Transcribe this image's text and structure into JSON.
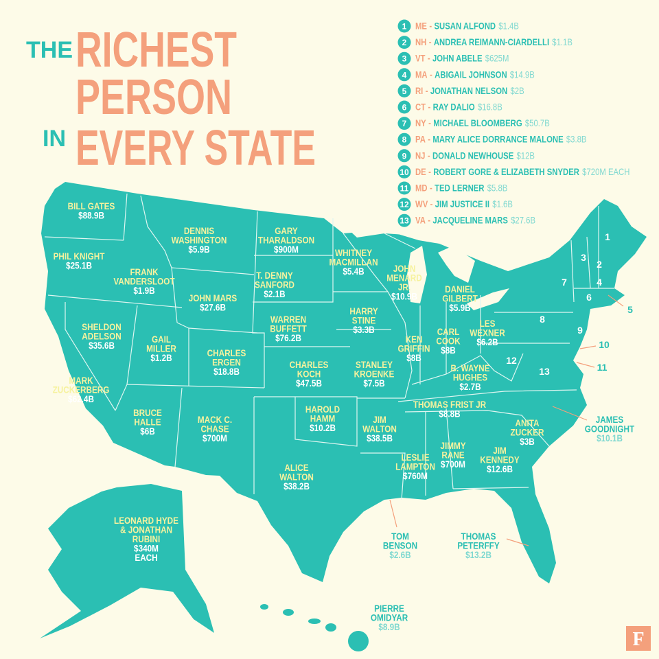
{
  "title": {
    "the": "THE",
    "richest": "RICHEST",
    "person": "PERSON",
    "in": "IN",
    "every_state": "EVERY STATE"
  },
  "legend_separator": "-",
  "legend": [
    {
      "number": "1",
      "state": "ME",
      "name": "SUSAN ALFOND",
      "worth": "$1.4B"
    },
    {
      "number": "2",
      "state": "NH",
      "name": "ANDREA REIMANN-CIARDELLI",
      "worth": "$1.1B"
    },
    {
      "number": "3",
      "state": "VT",
      "name": "JOHN ABELE",
      "worth": "$625M"
    },
    {
      "number": "4",
      "state": "MA",
      "name": "ABIGAIL JOHNSON",
      "worth": "$14.9B"
    },
    {
      "number": "5",
      "state": "RI",
      "name": "JONATHAN NELSON",
      "worth": "$2B"
    },
    {
      "number": "6",
      "state": "CT",
      "name": "RAY DALIO",
      "worth": "$16.8B"
    },
    {
      "number": "7",
      "state": "NY",
      "name": "MICHAEL BLOOMBERG",
      "worth": "$50.7B"
    },
    {
      "number": "8",
      "state": "PA",
      "name": "MARY ALICE DORRANCE MALONE",
      "worth": "$3.8B"
    },
    {
      "number": "9",
      "state": "NJ",
      "name": "DONALD NEWHOUSE",
      "worth": "$12B"
    },
    {
      "number": "10",
      "state": "DE",
      "name": "ROBERT GORE & ELIZABETH SNYDER",
      "worth": "$720M EACH"
    },
    {
      "number": "11",
      "state": "MD",
      "name": "TED LERNER",
      "worth": "$5.8B"
    },
    {
      "number": "12",
      "state": "WV",
      "name": "JIM JUSTICE II",
      "worth": "$1.6B"
    },
    {
      "number": "13",
      "state": "VA",
      "name": "JACQUELINE MARS",
      "worth": "$27.6B"
    }
  ],
  "map_labels": [
    {
      "lines": [
        "BILL GATES"
      ],
      "worth": [
        "$88.9B"
      ]
    },
    {
      "lines": [
        "PHIL KNIGHT"
      ],
      "worth": [
        "$25.1B"
      ]
    },
    {
      "lines": [
        "DENNIS",
        "WASHINGTON"
      ],
      "worth": [
        "$5.9B"
      ]
    },
    {
      "lines": [
        "GARY",
        "THARALDSON"
      ],
      "worth": [
        "$900M"
      ]
    },
    {
      "lines": [
        "FRANK",
        "VANDERSLOOT"
      ],
      "worth": [
        "$1.9B"
      ]
    },
    {
      "lines": [
        "WHITNEY",
        "MACMILLAN"
      ],
      "worth": [
        "$5.4B"
      ]
    },
    {
      "lines": [
        "T. DENNY",
        "SANFORD"
      ],
      "worth": [
        "$2.1B"
      ]
    },
    {
      "lines": [
        "JOHN",
        "MENARD",
        "JR."
      ],
      "worth": [
        "$10.9B"
      ]
    },
    {
      "lines": [
        "JOHN MARS"
      ],
      "worth": [
        "$27.6B"
      ]
    },
    {
      "lines": [
        "DANIEL",
        "GILBERT"
      ],
      "worth": [
        "$5.9B"
      ]
    },
    {
      "lines": [
        "SHELDON",
        "ADELSON"
      ],
      "worth": [
        "$35.6B"
      ]
    },
    {
      "lines": [
        "WARREN",
        "BUFFETT"
      ],
      "worth": [
        "$76.2B"
      ]
    },
    {
      "lines": [
        "HARRY",
        "STINE"
      ],
      "worth": [
        "$3.3B"
      ]
    },
    {
      "lines": [
        "GAIL",
        "MILLER"
      ],
      "worth": [
        "$1.2B"
      ]
    },
    {
      "lines": [
        "CHARLES",
        "ERGEN"
      ],
      "worth": [
        "$18.8B"
      ]
    },
    {
      "lines": [
        "KEN",
        "GRIFFIN"
      ],
      "worth": [
        "$8B"
      ]
    },
    {
      "lines": [
        "CARL",
        "COOK"
      ],
      "worth": [
        "$8B"
      ]
    },
    {
      "lines": [
        "LES",
        "WEXNER"
      ],
      "worth": [
        "$6.2B"
      ]
    },
    {
      "lines": [
        "CHARLES",
        "KOCH"
      ],
      "worth": [
        "$47.5B"
      ]
    },
    {
      "lines": [
        "STANLEY",
        "KROENKE"
      ],
      "worth": [
        "$7.5B"
      ]
    },
    {
      "lines": [
        "B. WAYNE",
        "HUGHES"
      ],
      "worth": [
        "$2.7B"
      ]
    },
    {
      "lines": [
        "MARK",
        "ZUCKERBERG"
      ],
      "worth": [
        "$62.4B"
      ]
    },
    {
      "lines": [
        "THOMAS FRIST JR"
      ],
      "worth": [
        "$8.8B"
      ]
    },
    {
      "lines": [
        "BRUCE",
        "HALLE"
      ],
      "worth": [
        "$6B"
      ]
    },
    {
      "lines": [
        "MACK C.",
        "CHASE"
      ],
      "worth": [
        "$700M"
      ]
    },
    {
      "lines": [
        "HAROLD",
        "HAMM"
      ],
      "worth": [
        "$10.2B"
      ]
    },
    {
      "lines": [
        "JIM",
        "WALTON"
      ],
      "worth": [
        "$38.5B"
      ]
    },
    {
      "lines": [
        "ANITA",
        "ZUCKER"
      ],
      "worth": [
        "$3B"
      ]
    },
    {
      "lines": [
        "JIMMY",
        "RANE"
      ],
      "worth": [
        "$700M"
      ]
    },
    {
      "lines": [
        "LESLIE",
        "LAMPTON"
      ],
      "worth": [
        "$760M"
      ]
    },
    {
      "lines": [
        "JIM",
        "KENNEDY"
      ],
      "worth": [
        "$12.6B"
      ]
    },
    {
      "lines": [
        "ALICE",
        "WALTON"
      ],
      "worth": [
        "$38.2B"
      ]
    },
    {
      "lines": [
        "LEONARD HYDE",
        "& JONATHAN",
        "RUBINI"
      ],
      "worth": [
        "$340M",
        "EACH"
      ]
    }
  ],
  "callout_labels": [
    {
      "lines": [
        "JAMES",
        "GOODNIGHT"
      ],
      "worth": [
        "$10.1B"
      ]
    },
    {
      "lines": [
        "TOM",
        "BENSON"
      ],
      "worth": [
        "$2.6B"
      ]
    },
    {
      "lines": [
        "THOMAS",
        "PETERFFY"
      ],
      "worth": [
        "$13.2B"
      ]
    },
    {
      "lines": [
        "PIERRE",
        "OMIDYAR"
      ],
      "worth": [
        "$8.9B"
      ]
    }
  ],
  "map_numbers": [
    "1",
    "2",
    "3",
    "4",
    "5",
    "6",
    "7",
    "8",
    "9",
    "10",
    "11",
    "12",
    "13"
  ],
  "logo": "F"
}
